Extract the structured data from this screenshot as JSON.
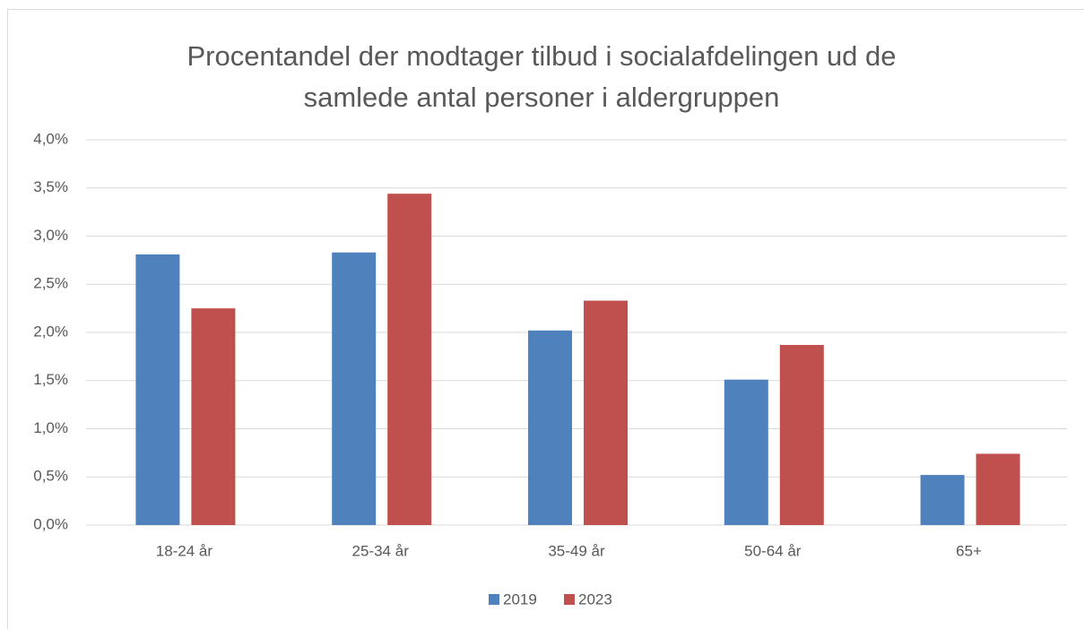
{
  "chart_data": {
    "type": "bar",
    "title": "Procentandel der modtager tilbud i socialafdelingen ud de samlede antal personer i aldergruppen",
    "categories": [
      "18-24 år",
      "25-34 år",
      "35-49 år",
      "50-64 år",
      "65+"
    ],
    "series": [
      {
        "name": "2019",
        "color": "#4f81bd",
        "values": [
          2.81,
          2.83,
          2.02,
          1.51,
          0.52
        ]
      },
      {
        "name": "2023",
        "color": "#c0504d",
        "values": [
          2.25,
          3.44,
          2.33,
          1.87,
          0.74
        ]
      }
    ],
    "ylim": [
      0,
      4
    ],
    "yticks": [
      {
        "value": 0,
        "label": "0,0%"
      },
      {
        "value": 0.5,
        "label": "0,5%"
      },
      {
        "value": 1,
        "label": "1,0%"
      },
      {
        "value": 1.5,
        "label": "1,5%"
      },
      {
        "value": 2,
        "label": "2,0%"
      },
      {
        "value": 2.5,
        "label": "2,5%"
      },
      {
        "value": 3,
        "label": "3,0%"
      },
      {
        "value": 3.5,
        "label": "3,5%"
      },
      {
        "value": 4,
        "label": "4,0%"
      }
    ],
    "grid": true,
    "legend": "bottom"
  }
}
